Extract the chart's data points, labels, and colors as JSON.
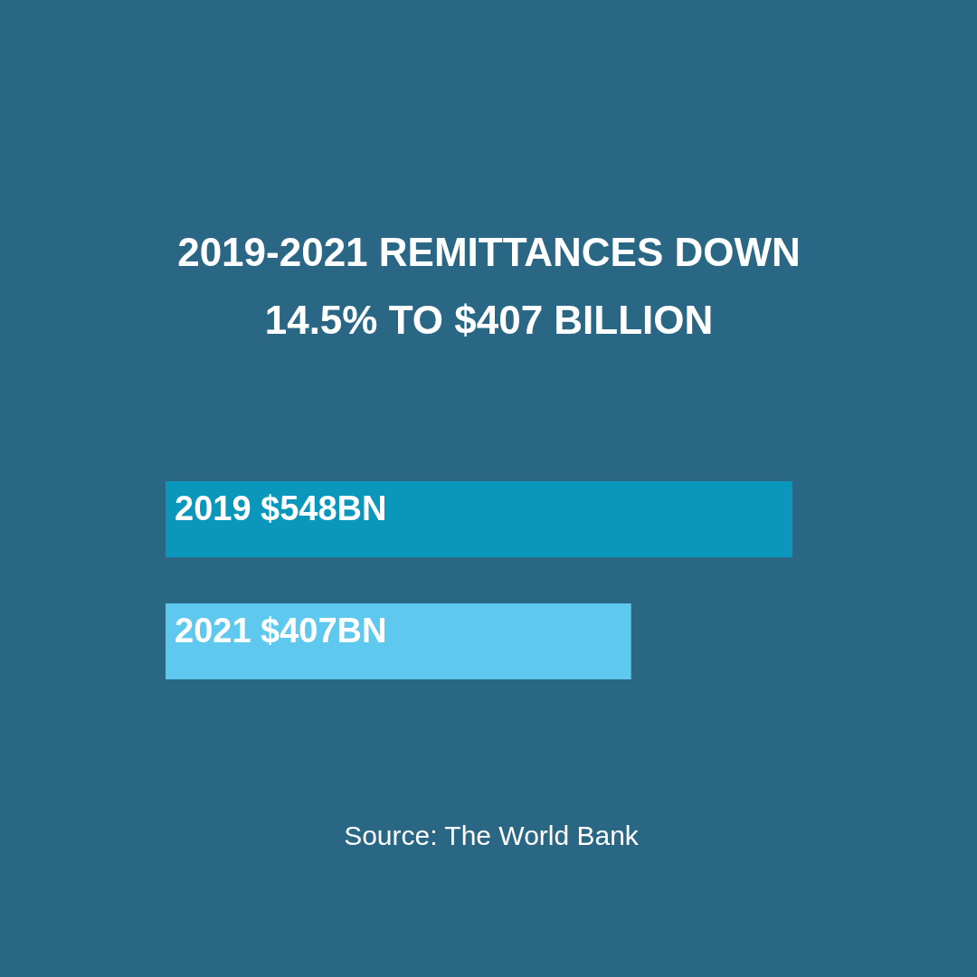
{
  "chart_data": {
    "type": "bar",
    "orientation": "horizontal",
    "title": "2019-2021 REMITTANCES DOWN 14.5% TO $407 BILLION",
    "categories": [
      "2019",
      "2021"
    ],
    "values": [
      548,
      407
    ],
    "value_labels": [
      "$548BN",
      "$407BN"
    ],
    "colors": [
      "#0b97bb",
      "#5ec8ee"
    ],
    "annotations": [
      "Source: The World Bank"
    ]
  }
}
